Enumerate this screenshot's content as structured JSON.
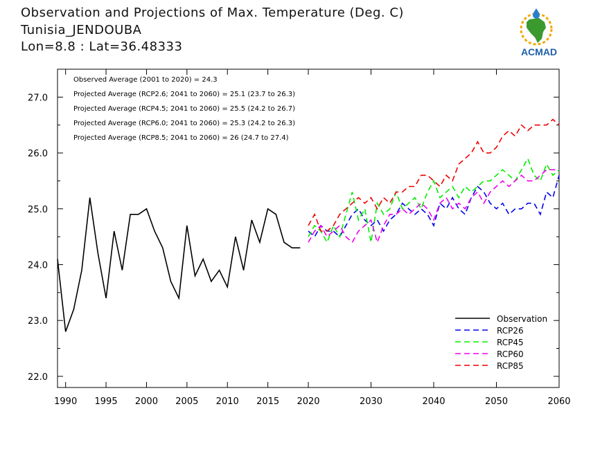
{
  "header": {
    "title": "Observation and Projections of Max. Temperature (Deg. C)",
    "station": "Tunisia_JENDOUBA",
    "coords": "Lon=8.8 : Lat=36.48333"
  },
  "logo": {
    "text": "ACMAD",
    "icon": "africa-map-logo"
  },
  "annotations": [
    "Observed Average (2001 to 2020) = 24.3",
    "Projected Average (RCP2.6; 2041 to 2060) = 25.1 (23.7 to 26.3)",
    "Projected Average (RCP4.5; 2041 to 2060) = 25.5 (24.2 to 26.7)",
    "Projected Average (RCP6.0; 2041 to 2060) = 25.3 (24.2 to 26.3)",
    "Projected Average (RCP8.5; 2041 to 2060) = 26 (24.7 to 27.4)"
  ],
  "chart_data": {
    "type": "line",
    "xlim": [
      1989,
      2060
    ],
    "ylim": [
      21.8,
      27.5
    ],
    "x_ticks": [
      1990,
      1995,
      2000,
      2005,
      2010,
      2015,
      2020,
      2030,
      2040,
      2050,
      2060
    ],
    "y_ticks": [
      "22.0",
      "23.0",
      "24.0",
      "25.0",
      "26.0",
      "27.0"
    ],
    "legend_position": "bottom-right",
    "series": [
      {
        "name": "Observation",
        "color": "#000000",
        "dashed": false,
        "x": [
          1989,
          1990,
          1991,
          1992,
          1993,
          1994,
          1995,
          1996,
          1997,
          1998,
          1999,
          2000,
          2001,
          2002,
          2003,
          2004,
          2005,
          2006,
          2007,
          2008,
          2009,
          2010,
          2011,
          2012,
          2013,
          2014,
          2015,
          2016,
          2017,
          2018,
          2019
        ],
        "y": [
          24.1,
          22.8,
          23.2,
          23.9,
          25.2,
          24.2,
          23.4,
          24.6,
          23.9,
          24.9,
          24.9,
          25.0,
          24.6,
          24.3,
          23.7,
          23.4,
          24.7,
          23.8,
          24.1,
          23.7,
          23.9,
          23.6,
          24.5,
          23.9,
          24.8,
          24.4,
          25.0,
          24.9,
          24.4,
          24.3,
          24.3
        ]
      },
      {
        "name": "RCP26",
        "color": "#0000ee",
        "dashed": true,
        "x": [
          2020,
          2021,
          2022,
          2023,
          2024,
          2025,
          2026,
          2027,
          2028,
          2029,
          2030,
          2031,
          2032,
          2033,
          2034,
          2035,
          2036,
          2037,
          2038,
          2039,
          2040,
          2041,
          2042,
          2043,
          2044,
          2045,
          2046,
          2047,
          2048,
          2049,
          2050,
          2051,
          2052,
          2053,
          2054,
          2055,
          2056,
          2057,
          2058,
          2059,
          2060
        ],
        "y": [
          24.6,
          24.5,
          24.7,
          24.6,
          24.6,
          24.5,
          24.7,
          24.9,
          25.0,
          24.8,
          24.7,
          24.8,
          24.6,
          24.8,
          24.9,
          25.1,
          25.0,
          24.9,
          25.0,
          24.9,
          24.7,
          25.1,
          25.0,
          25.2,
          25.0,
          24.9,
          25.2,
          25.4,
          25.3,
          25.1,
          25.0,
          25.1,
          24.9,
          25.0,
          25.0,
          25.1,
          25.1,
          24.9,
          25.3,
          25.2,
          25.6
        ]
      },
      {
        "name": "RCP45",
        "color": "#00ee00",
        "dashed": true,
        "x": [
          2020,
          2021,
          2022,
          2023,
          2024,
          2025,
          2026,
          2027,
          2028,
          2029,
          2030,
          2031,
          2032,
          2033,
          2034,
          2035,
          2036,
          2037,
          2038,
          2039,
          2040,
          2041,
          2042,
          2043,
          2044,
          2045,
          2046,
          2047,
          2048,
          2049,
          2050,
          2051,
          2052,
          2053,
          2054,
          2055,
          2056,
          2057,
          2058,
          2059,
          2060
        ],
        "y": [
          24.5,
          24.7,
          24.6,
          24.4,
          24.7,
          24.5,
          24.9,
          25.3,
          24.8,
          25.0,
          24.4,
          25.1,
          24.9,
          25.0,
          25.3,
          25.0,
          25.1,
          25.2,
          25.0,
          25.3,
          25.5,
          25.2,
          25.3,
          25.4,
          25.2,
          25.4,
          25.3,
          25.4,
          25.5,
          25.5,
          25.6,
          25.7,
          25.6,
          25.5,
          25.7,
          25.9,
          25.6,
          25.5,
          25.8,
          25.6,
          25.7
        ]
      },
      {
        "name": "RCP60",
        "color": "#ee00ee",
        "dashed": true,
        "x": [
          2020,
          2021,
          2022,
          2023,
          2024,
          2025,
          2026,
          2027,
          2028,
          2029,
          2030,
          2031,
          2032,
          2033,
          2034,
          2035,
          2036,
          2037,
          2038,
          2039,
          2040,
          2041,
          2042,
          2043,
          2044,
          2045,
          2046,
          2047,
          2048,
          2049,
          2050,
          2051,
          2052,
          2053,
          2054,
          2055,
          2056,
          2057,
          2058,
          2059,
          2060
        ],
        "y": [
          24.4,
          24.6,
          24.7,
          24.5,
          24.6,
          24.7,
          24.5,
          24.4,
          24.6,
          24.7,
          24.8,
          24.4,
          24.7,
          24.9,
          24.9,
          25.0,
          24.9,
          25.0,
          25.1,
          25.0,
          24.8,
          25.1,
          25.2,
          25.0,
          25.1,
          25.0,
          25.2,
          25.3,
          25.1,
          25.3,
          25.4,
          25.5,
          25.4,
          25.5,
          25.6,
          25.5,
          25.5,
          25.6,
          25.7,
          25.7,
          25.7
        ]
      },
      {
        "name": "RCP85",
        "color": "#ee0000",
        "dashed": true,
        "x": [
          2020,
          2021,
          2022,
          2023,
          2024,
          2025,
          2026,
          2027,
          2028,
          2029,
          2030,
          2031,
          2032,
          2033,
          2034,
          2035,
          2036,
          2037,
          2038,
          2039,
          2040,
          2041,
          2042,
          2043,
          2044,
          2045,
          2046,
          2047,
          2048,
          2049,
          2050,
          2051,
          2052,
          2053,
          2054,
          2055,
          2056,
          2057,
          2058,
          2059,
          2060
        ],
        "y": [
          24.7,
          24.9,
          24.6,
          24.6,
          24.7,
          24.9,
          25.0,
          25.1,
          25.2,
          25.1,
          25.2,
          25.0,
          25.2,
          25.1,
          25.3,
          25.3,
          25.4,
          25.4,
          25.6,
          25.6,
          25.5,
          25.4,
          25.6,
          25.5,
          25.8,
          25.9,
          26.0,
          26.2,
          26.0,
          26.0,
          26.1,
          26.3,
          26.4,
          26.3,
          26.5,
          26.4,
          26.5,
          26.5,
          26.5,
          26.6,
          26.5
        ]
      }
    ]
  }
}
